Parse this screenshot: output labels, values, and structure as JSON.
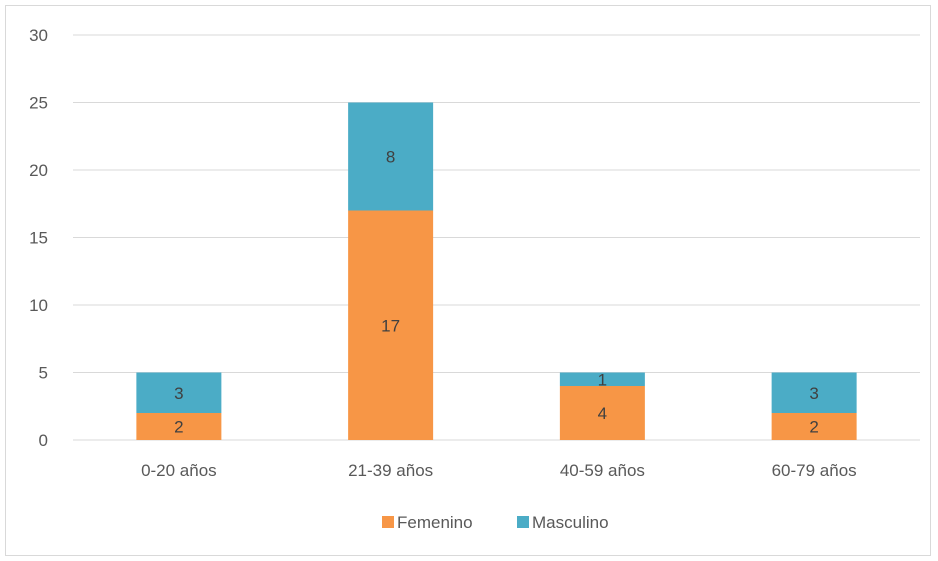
{
  "chart_data": {
    "type": "bar",
    "stacked": true,
    "categories": [
      "0-20 años",
      "21-39 años",
      "40-59 años",
      "60-79 años"
    ],
    "series": [
      {
        "name": "Femenino",
        "values": [
          2,
          17,
          4,
          2
        ],
        "color": "#f79646"
      },
      {
        "name": "Masculino",
        "values": [
          3,
          8,
          1,
          3
        ],
        "color": "#4bacc6"
      }
    ],
    "ylim": [
      0,
      30
    ],
    "yticks": [
      0,
      5,
      10,
      15,
      20,
      25,
      30
    ],
    "grid": true,
    "legend": "bottom",
    "data_labels": true,
    "gridline_color": "#d9d9d9"
  }
}
